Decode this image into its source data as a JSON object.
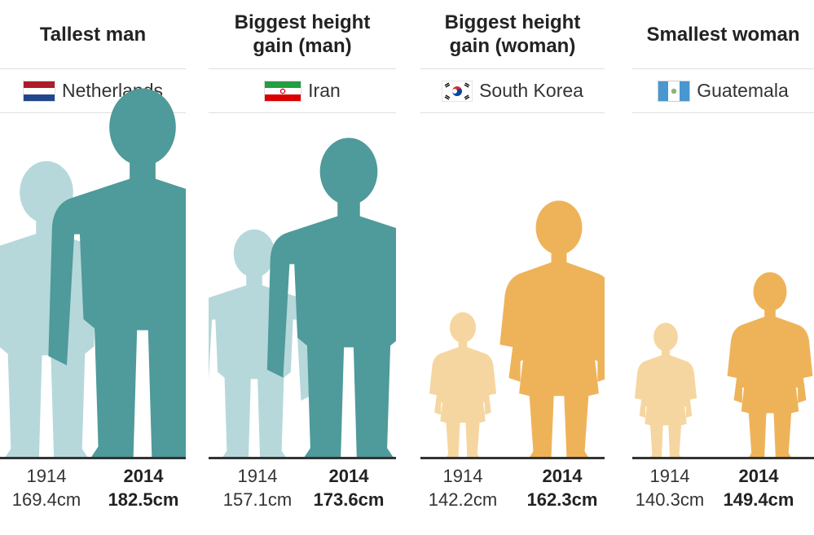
{
  "chart_data": {
    "type": "bar",
    "categories": [
      "1914",
      "2014"
    ],
    "unit": "cm",
    "panels": [
      {
        "title": "Tallest man",
        "country": "Netherlands",
        "flag": "netherlands-flag",
        "gender": "man",
        "color_1914": "#b6d8da",
        "color_2014": "#4f9a9b",
        "values": [
          169.4,
          182.5
        ],
        "labels": [
          "169.4cm",
          "182.5cm"
        ]
      },
      {
        "title": "Biggest height\ngain (man)",
        "country": "Iran",
        "flag": "iran-flag",
        "gender": "man",
        "color_1914": "#b6d8da",
        "color_2014": "#4f9a9b",
        "values": [
          157.1,
          173.6
        ],
        "labels": [
          "157.1cm",
          "173.6cm"
        ]
      },
      {
        "title": "Biggest height\ngain (woman)",
        "country": "South Korea",
        "flag": "south-korea-flag",
        "gender": "woman",
        "color_1914": "#f6d6a0",
        "color_2014": "#eeb359",
        "values": [
          142.2,
          162.3
        ],
        "labels": [
          "142.2cm",
          "162.3cm"
        ]
      },
      {
        "title": "Smallest woman",
        "country": "Guatemala",
        "flag": "guatemala-flag",
        "gender": "woman",
        "color_1914": "#f6d6a0",
        "color_2014": "#eeb359",
        "values": [
          140.3,
          149.4
        ],
        "labels": [
          "140.3cm",
          "149.4cm"
        ]
      }
    ]
  }
}
